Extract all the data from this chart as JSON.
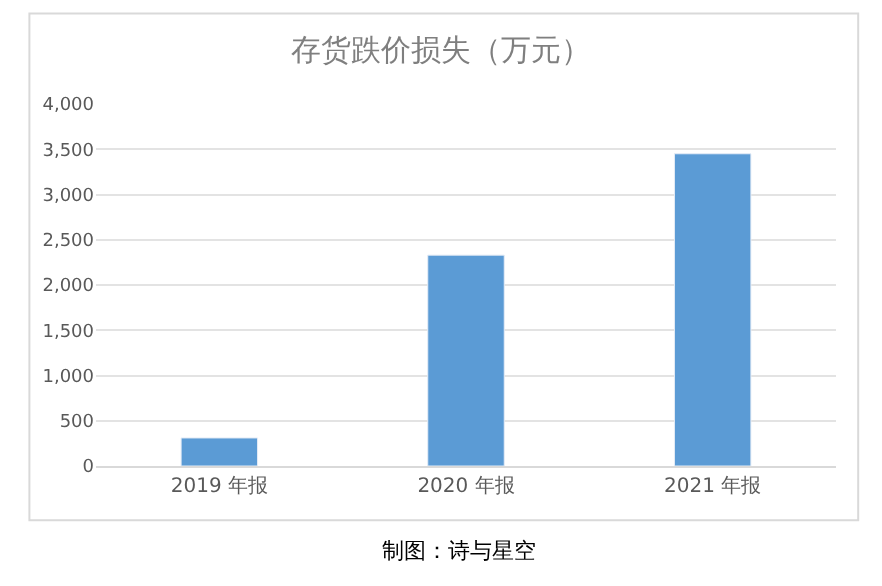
{
  "chart_data": {
    "type": "bar",
    "title": "存货跌价损失（万元）",
    "categories": [
      "2019 年报",
      "2020 年报",
      "2021 年报"
    ],
    "values": [
      310,
      2330,
      3450
    ],
    "color": "#5b9bd5",
    "ylim": [
      0,
      4000
    ],
    "yticks": [
      {
        "value": 0,
        "label": "0"
      },
      {
        "value": 500,
        "label": "500"
      },
      {
        "value": 1000,
        "label": "1,000"
      },
      {
        "value": 1500,
        "label": "1,500"
      },
      {
        "value": 2000,
        "label": "2,000"
      },
      {
        "value": 2500,
        "label": "2,500"
      },
      {
        "value": 3000,
        "label": "3,000"
      },
      {
        "value": 3500,
        "label": "3,500"
      },
      {
        "value": 4000,
        "label": "4,000"
      }
    ],
    "grid": "y",
    "annotations": [
      "制图：诗与星空"
    ]
  }
}
